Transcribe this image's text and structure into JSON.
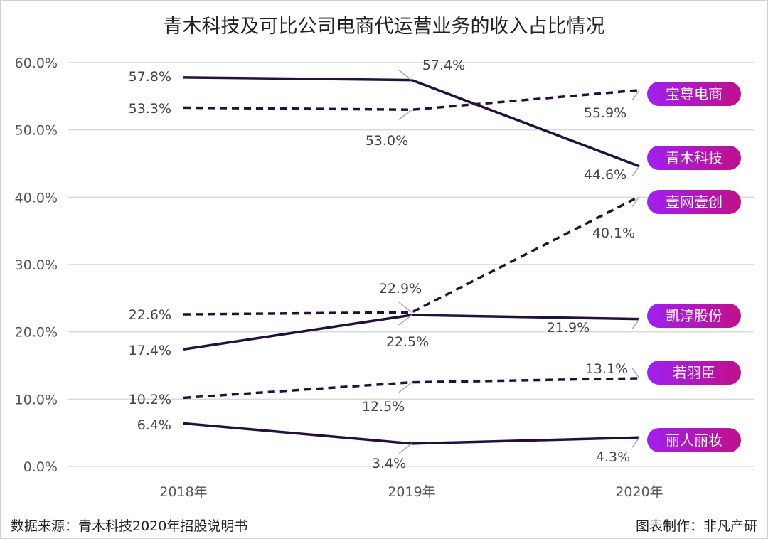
{
  "chart_data": {
    "type": "line",
    "title": "青木科技及可比公司电商代运营业务的收入占比情况",
    "categories": [
      "2018年",
      "2019年",
      "2020年"
    ],
    "ylim": [
      0,
      60
    ],
    "yticks": [
      "0.0%",
      "10.0%",
      "20.0%",
      "30.0%",
      "40.0%",
      "50.0%",
      "60.0%"
    ],
    "grid": true,
    "legend": "right, badges at line ends",
    "line_color": "#24103f",
    "badge_colors": [
      "#a020f0",
      "#c0108a"
    ],
    "series": [
      {
        "name": "宝尊电商",
        "style": "dashed",
        "values": [
          53.3,
          53.0,
          55.9
        ]
      },
      {
        "name": "青木科技",
        "style": "solid",
        "values": [
          57.8,
          57.4,
          44.6
        ]
      },
      {
        "name": "壹网壹创",
        "style": "dashed",
        "values": [
          22.6,
          22.9,
          40.1
        ]
      },
      {
        "name": "凯淳股份",
        "style": "solid",
        "values": [
          17.4,
          22.5,
          21.9
        ]
      },
      {
        "name": "若羽臣",
        "style": "dashed",
        "values": [
          10.2,
          12.5,
          13.1
        ]
      },
      {
        "name": "丽人丽妆",
        "style": "solid",
        "values": [
          6.4,
          3.4,
          4.3
        ]
      }
    ]
  },
  "footer": {
    "source": "数据来源：青木科技2020年招股说明书",
    "credit": "图表制作：非凡产研"
  }
}
